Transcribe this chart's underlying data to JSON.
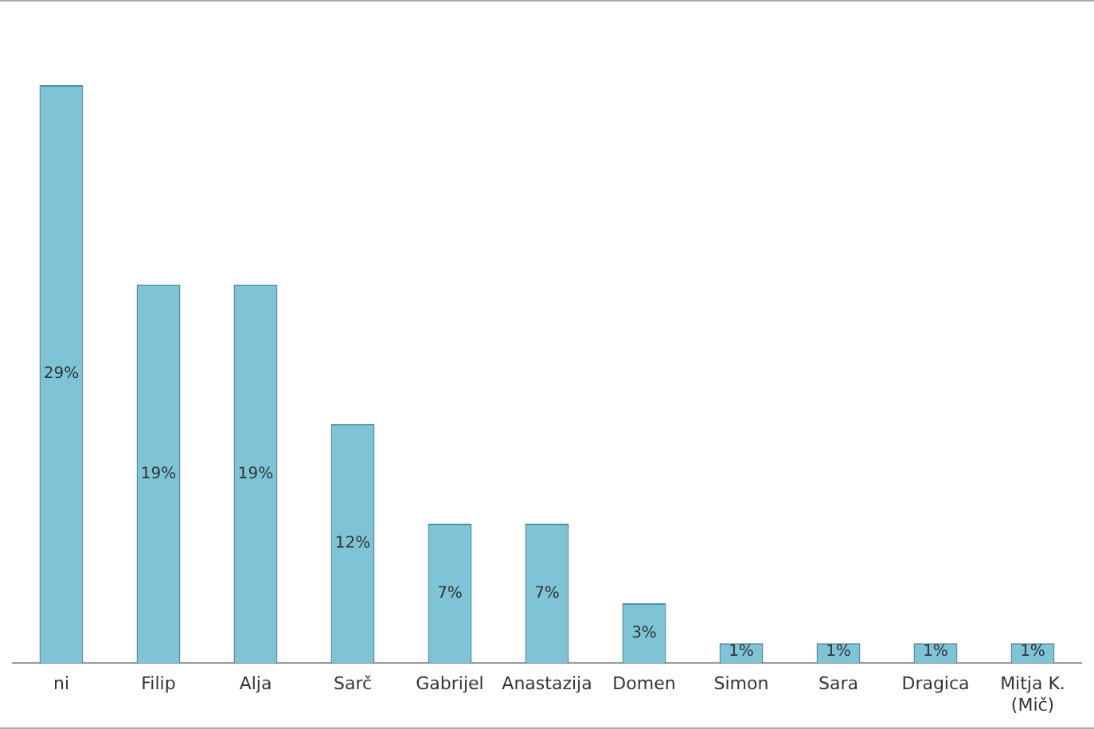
{
  "chart_data": {
    "type": "bar",
    "categories": [
      "ni",
      "Filip",
      "Alja",
      "Sarč",
      "Gabrijel",
      "Anastazija",
      "Domen",
      "Simon",
      "Sara",
      "Dragica",
      "Mitja K. (Mič)"
    ],
    "values": [
      29,
      19,
      19,
      12,
      7,
      7,
      3,
      1,
      1,
      1,
      1
    ],
    "value_labels": [
      "29%",
      "19%",
      "19%",
      "12%",
      "7%",
      "7%",
      "3%",
      "1%",
      "1%",
      "1%",
      "1%"
    ],
    "color": "#7ec4d6",
    "grid": false,
    "legend": false
  }
}
